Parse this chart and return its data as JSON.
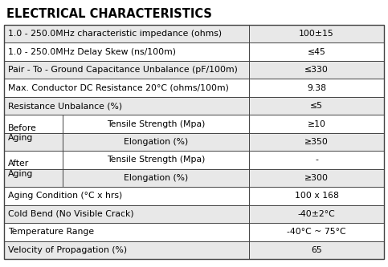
{
  "title": "ELECTRICAL CHARACTERISTICS",
  "title_fontsize": 10.5,
  "body_fontsize": 7.8,
  "bg_color": "#ffffff",
  "row_bg_odd": "#e8e8e8",
  "row_bg_even": "#ffffff",
  "border_color": "#444444",
  "text_color": "#000000",
  "col_split": 0.645,
  "sub_col_split": 0.155,
  "rows": [
    {
      "type": "simple",
      "col1": "1.0 - 250.0MHz characteristic impedance (ohms)",
      "col2": "100±15"
    },
    {
      "type": "simple",
      "col1": "1.0 - 250.0MHz Delay Skew (ns/100m)",
      "col2": "≤45"
    },
    {
      "type": "simple",
      "col1": "Pair - To - Ground Capacitance Unbalance (pF/100m)",
      "col2": "≤330"
    },
    {
      "type": "simple",
      "col1": "Max. Conductor DC Resistance 20°C (ohms/100m)",
      "col2": "9.38"
    },
    {
      "type": "simple",
      "col1": "Resistance Unbalance (%)",
      "col2": "≤5"
    },
    {
      "type": "sub_first",
      "label": "Before\nAging",
      "sub": "Tensile Strength (Mpa)",
      "col2": "≥10",
      "group": 0
    },
    {
      "type": "sub_second",
      "label": null,
      "sub": "Elongation (%)",
      "col2": "≥350",
      "group": 0
    },
    {
      "type": "sub_first",
      "label": "After\nAging",
      "sub": "Tensile Strength (Mpa)",
      "col2": "-",
      "group": 1
    },
    {
      "type": "sub_second",
      "label": null,
      "sub": "Elongation (%)",
      "col2": "≥300",
      "group": 1
    },
    {
      "type": "simple",
      "col1": "Aging Condition (°C x hrs)",
      "col2": "100 x 168"
    },
    {
      "type": "simple",
      "col1": "Cold Bend (No Visible Crack)",
      "col2": "-40±2°C"
    },
    {
      "type": "simple",
      "col1": "Temperature Range",
      "col2": "-40°C ~ 75°C"
    },
    {
      "type": "simple",
      "col1": "Velocity of Propagation (%)",
      "col2": "65"
    }
  ]
}
